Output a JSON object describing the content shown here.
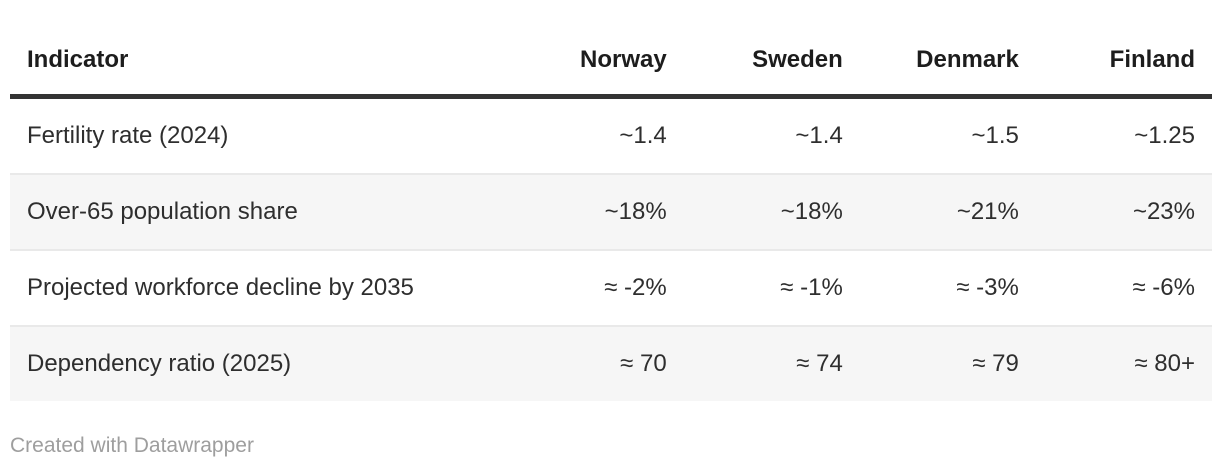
{
  "chart_data": {
    "type": "table",
    "columns": [
      "Indicator",
      "Norway",
      "Sweden",
      "Denmark",
      "Finland"
    ],
    "rows": [
      [
        "Fertility rate (2024)",
        "~1.4",
        "~1.4",
        "~1.5",
        "~1.25"
      ],
      [
        "Over-65 population share",
        "~18%",
        "~18%",
        "~21%",
        "~23%"
      ],
      [
        "Projected workforce decline by 2035",
        "≈ -2%",
        "≈ -1%",
        "≈ -3%",
        "≈ -6%"
      ],
      [
        "Dependency ratio (2025)",
        "≈ 70",
        "≈ 74",
        "≈ 79",
        "≈ 80+"
      ]
    ],
    "layout": {
      "header_align": "first column left, value columns right",
      "striped_rows": "even rows shaded",
      "grid": "thick rule under header, thin rules between rows"
    }
  },
  "footer": {
    "attribution": "Created with Datawrapper"
  },
  "colors": {
    "text_header": "#1d1d1d",
    "text_body": "#2e2e2e",
    "header_border": "#333333",
    "row_stripe": "#f6f6f6",
    "row_divider": "#e9e9e9",
    "footer_text": "#9e9e9e",
    "bg": "#ffffff"
  }
}
